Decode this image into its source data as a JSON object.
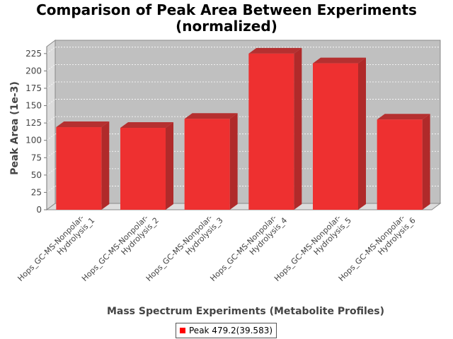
{
  "chart_data": {
    "type": "bar",
    "title": "Comparison of Peak Area Between Experiments",
    "subtitle": "(normalized)",
    "xlabel": "Mass Spectrum Experiments (Metabolite Profiles)",
    "ylabel": "Peak Area (1e-3)",
    "categories": [
      [
        "Hops_GC-MS-Nonpolar-",
        "Hydrolysis_1"
      ],
      [
        "Hops_GC-MS-Nonpolar-",
        "Hydrolysis_2"
      ],
      [
        "Hops_GC-MS-Nonpolar-",
        "Hydrolysis_3"
      ],
      [
        "Hops_GC-MS-Nonpolar-",
        "Hydrolysis_4"
      ],
      [
        "Hops_GC-MS-Nonpolar-",
        "Hydrolysis_5"
      ],
      [
        "Hops_GC-MS-Nonpolar-",
        "Hydrolysis_6"
      ]
    ],
    "series": [
      {
        "name": "Peak 479.2(39.583)",
        "values": [
          119,
          118,
          131,
          225,
          211,
          130
        ]
      }
    ],
    "ylim": [
      0,
      235
    ],
    "yticks": [
      0,
      25,
      50,
      75,
      100,
      125,
      150,
      175,
      200,
      225
    ],
    "grid": true,
    "legend_position": "bottom",
    "colors": {
      "bar": "#ff0000",
      "plot_background": "#c0c0c0"
    }
  }
}
